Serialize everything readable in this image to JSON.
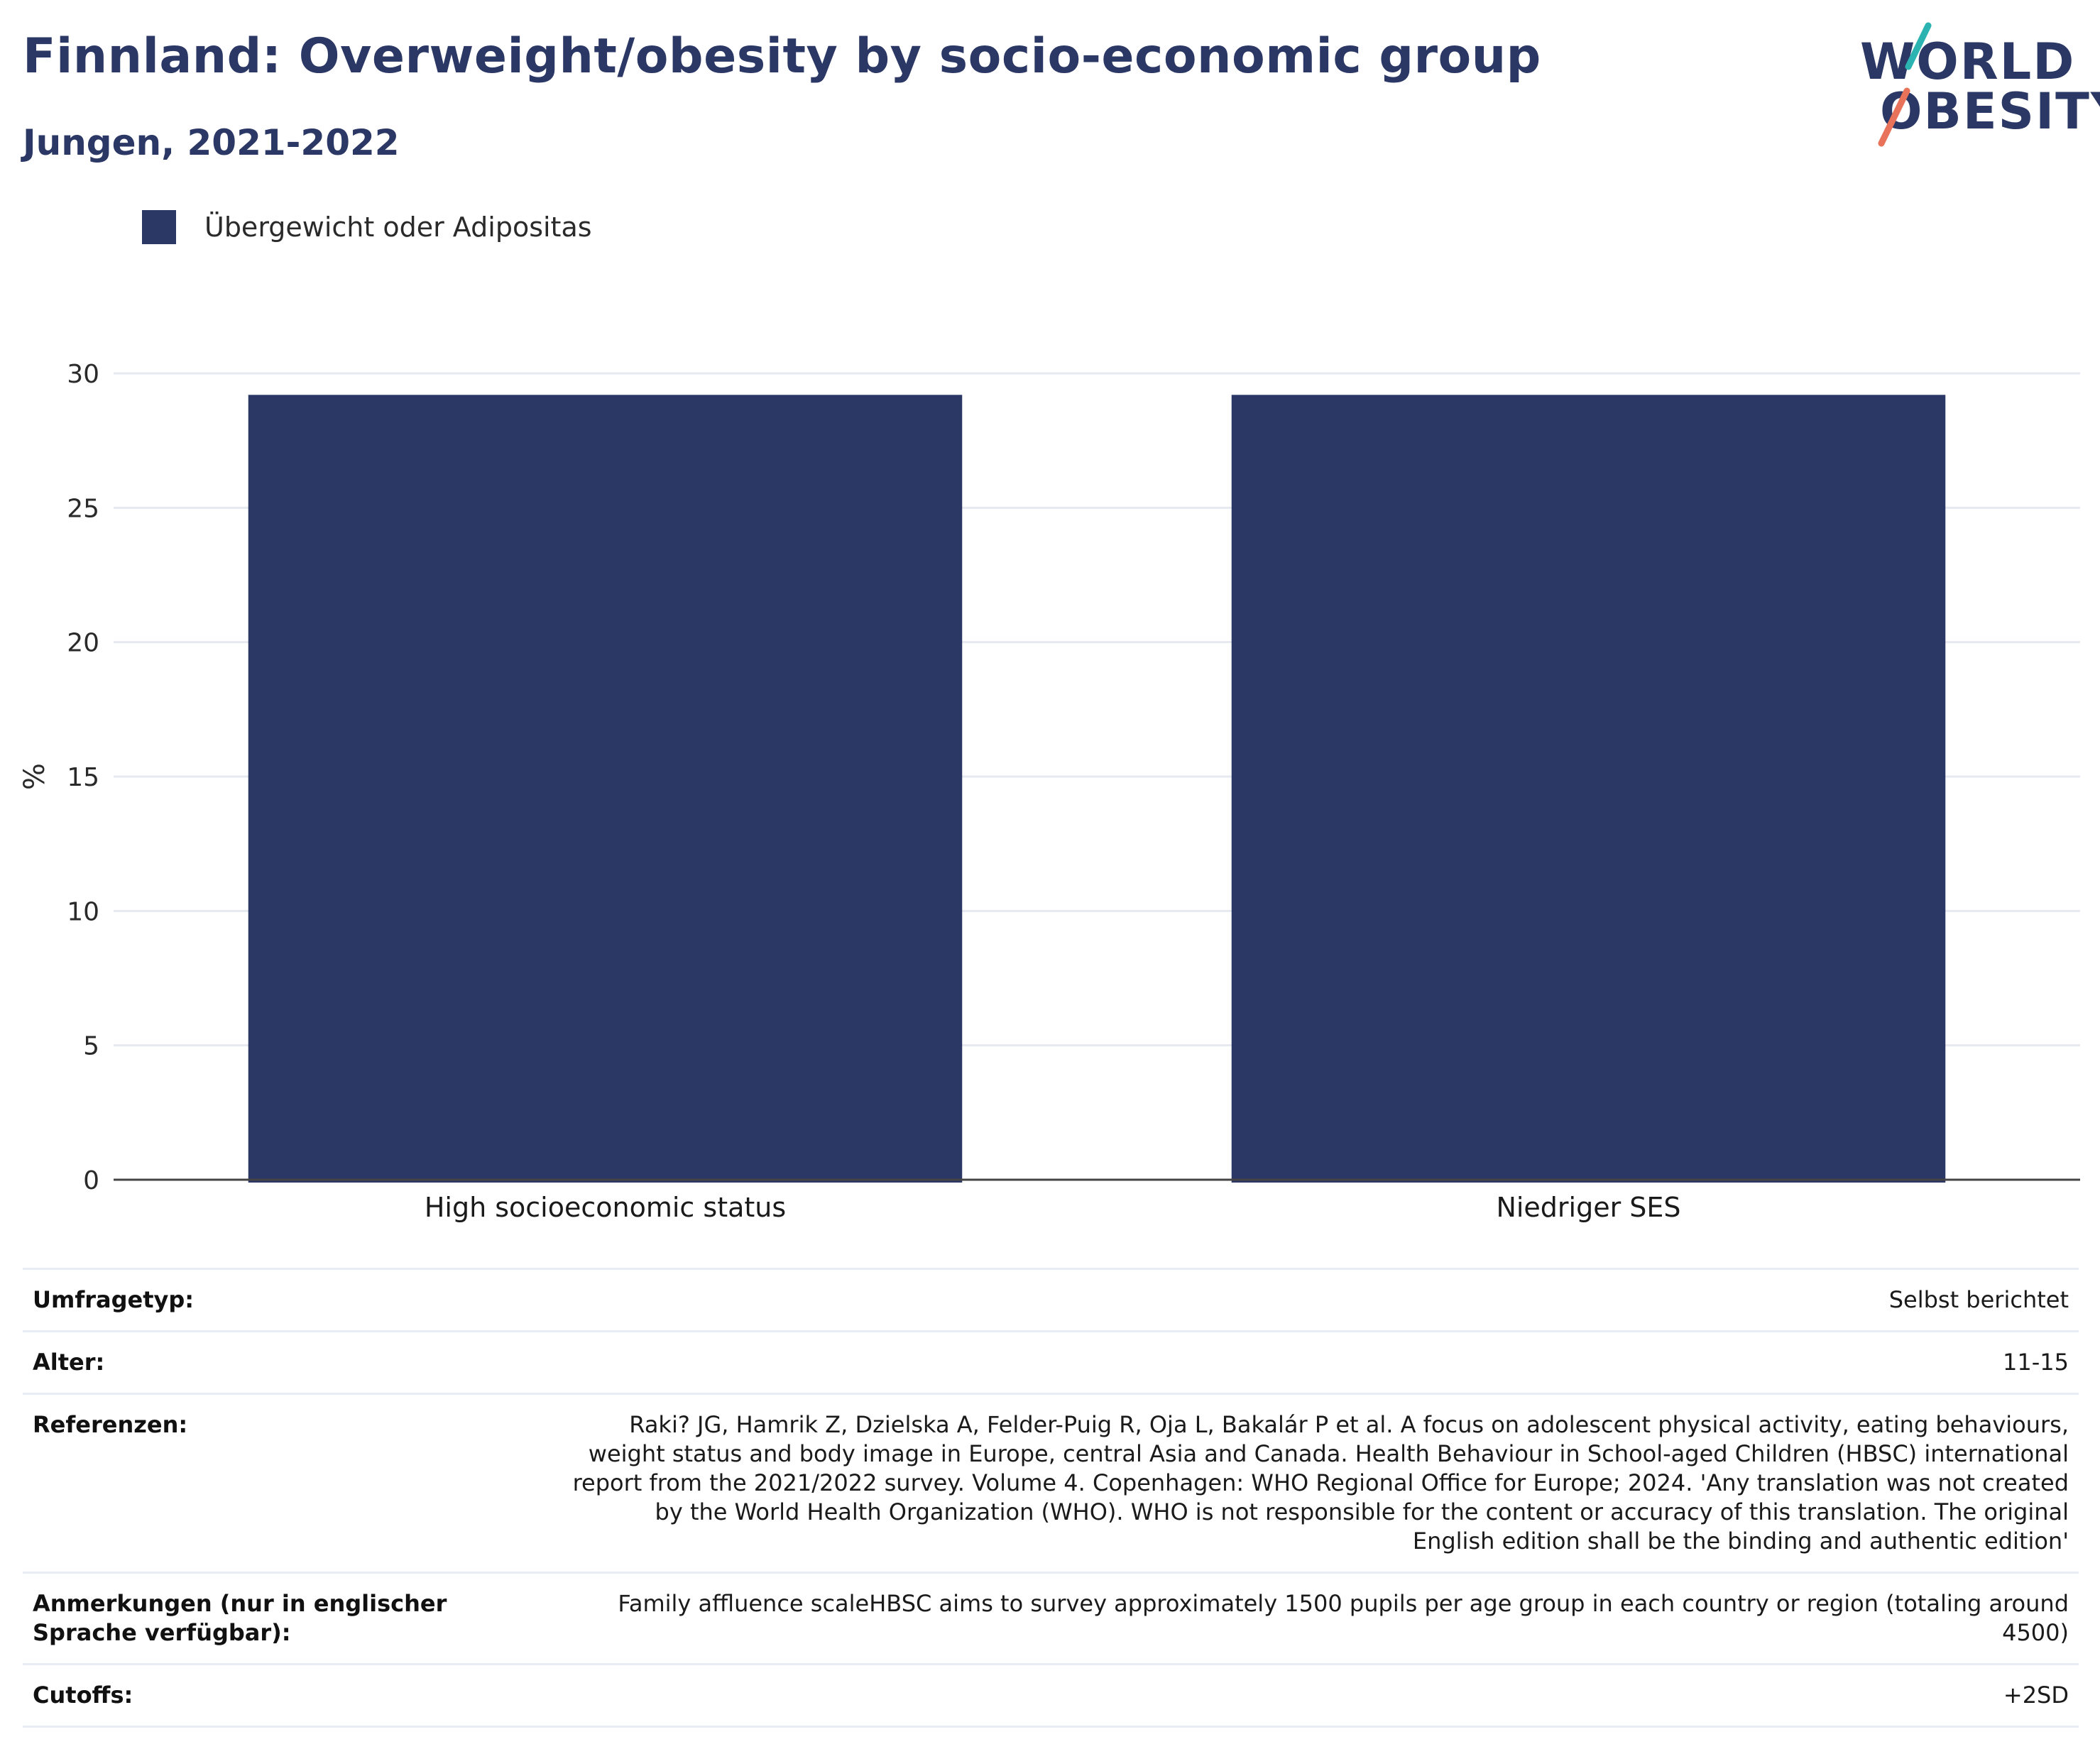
{
  "header": {
    "title": "Finnland: Overweight/obesity by socio-economic group",
    "subtitle": "Jungen, 2021-2022"
  },
  "logo": {
    "line1": "WORLD",
    "line2": "OBESITY",
    "colors": {
      "text": "#2b3764",
      "slash_top": "#2bb3b1",
      "slash_bottom": "#e8735a"
    }
  },
  "legend": {
    "items": [
      {
        "label": "Übergewicht oder Adipositas",
        "color": "#2b3764"
      }
    ]
  },
  "chart_data": {
    "type": "bar",
    "categories": [
      "High socioeconomic status",
      "Niedriger SES"
    ],
    "series": [
      {
        "name": "Übergewicht oder Adipositas",
        "values": [
          29.2,
          29.2
        ],
        "color": "#2b3764"
      }
    ],
    "xlabel": "",
    "ylabel": "%",
    "ylim": [
      0,
      30
    ],
    "yticks": [
      0,
      5,
      10,
      15,
      20,
      25,
      30
    ],
    "grid": true,
    "legend_position": "top-left"
  },
  "info": [
    {
      "key": "Umfragetyp:",
      "value": "Selbst berichtet"
    },
    {
      "key": "Alter:",
      "value": "11-15"
    },
    {
      "key": "Referenzen:",
      "value": "Raki? JG, Hamrik Z, Dzielska A, Felder-Puig R, Oja L, Bakalár P et al. A focus on adolescent physical activity, eating behaviours, weight status and body image in Europe, central Asia and Canada. Health Behaviour in School-aged Children (HBSC) international report from the 2021/2022 survey. Volume 4. Copenhagen: WHO Regional Office for Europe; 2024. 'Any translation was not created by the World Health Organization (WHO). WHO is not responsible for the content or accuracy of this translation. The original English edition shall be the binding and authentic edition'"
    },
    {
      "key": "Anmerkungen (nur in englischer Sprache verfügbar):",
      "value": "Family affluence scaleHBSC aims to survey approximately 1500 pupils per age group in each country or region (totaling around 4500)"
    },
    {
      "key": "Cutoffs:",
      "value": "+2SD"
    }
  ]
}
